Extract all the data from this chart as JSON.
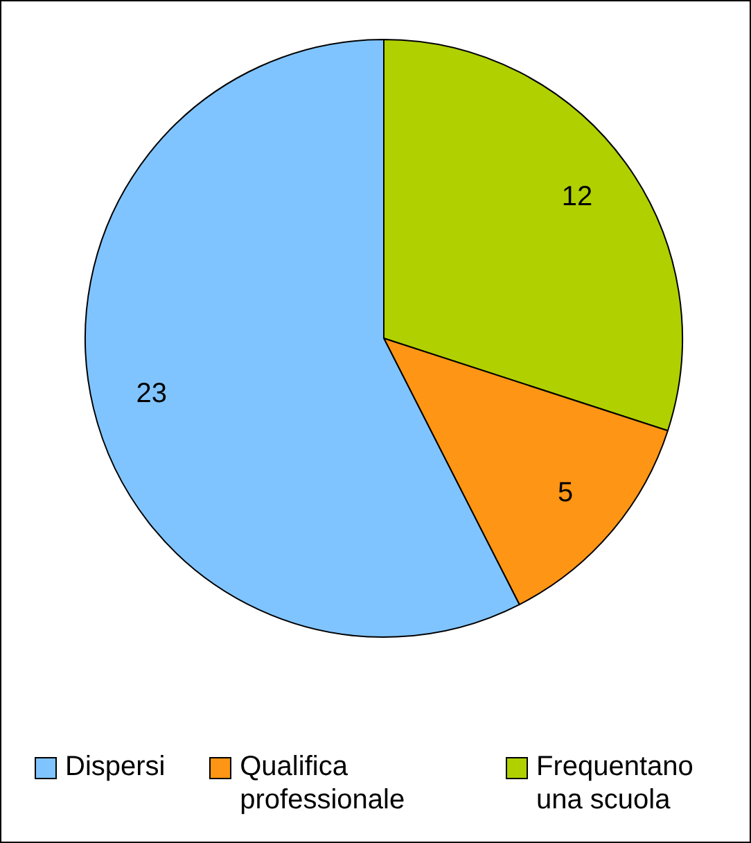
{
  "chart_data": {
    "type": "pie",
    "categories": [
      "Dispersi",
      "Qualifica professionale",
      "Frequentano una scuola"
    ],
    "values": [
      23,
      5,
      12
    ],
    "colors": [
      "#80c4ff",
      "#ff9514",
      "#b0d000"
    ],
    "data_labels": true,
    "legend": "bottom"
  }
}
